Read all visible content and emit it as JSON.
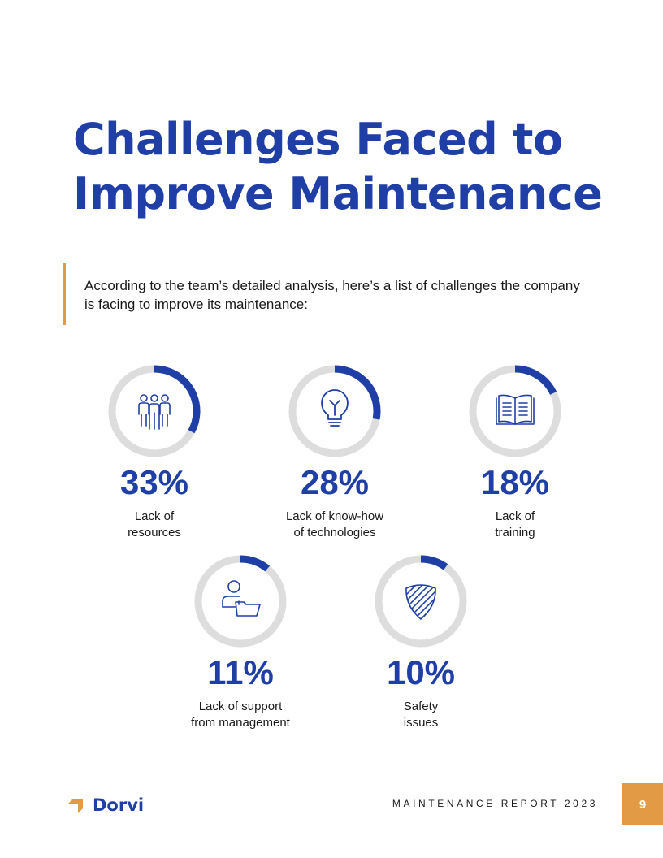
{
  "page": {
    "title": "Challenges Faced to Improve Maintenance",
    "intro": "According to the team’s detailed analysis, here’s a list of challenges the company is facing to improve its maintenance:"
  },
  "colors": {
    "accent_blue": "#1f3fa6",
    "accent_orange": "#e39a45",
    "ring_track": "#dddddd"
  },
  "stats": [
    {
      "percent": 33,
      "percent_label": "33%",
      "label_line1": "Lack of",
      "label_line2": "resources",
      "icon": "people-group-icon"
    },
    {
      "percent": 28,
      "percent_label": "28%",
      "label_line1": "Lack of know-how",
      "label_line2": "of technologies",
      "icon": "lightbulb-icon"
    },
    {
      "percent": 18,
      "percent_label": "18%",
      "label_line1": "Lack of",
      "label_line2": "training",
      "icon": "open-book-icon"
    },
    {
      "percent": 11,
      "percent_label": "11%",
      "label_line1": "Lack of support",
      "label_line2": "from management",
      "icon": "person-folder-icon"
    },
    {
      "percent": 10,
      "percent_label": "10%",
      "label_line1": "Safety",
      "label_line2": "issues",
      "icon": "shield-icon"
    }
  ],
  "footer": {
    "brand": "Dorvi",
    "report": "MAINTENANCE REPORT 2023",
    "page_number": "9"
  }
}
